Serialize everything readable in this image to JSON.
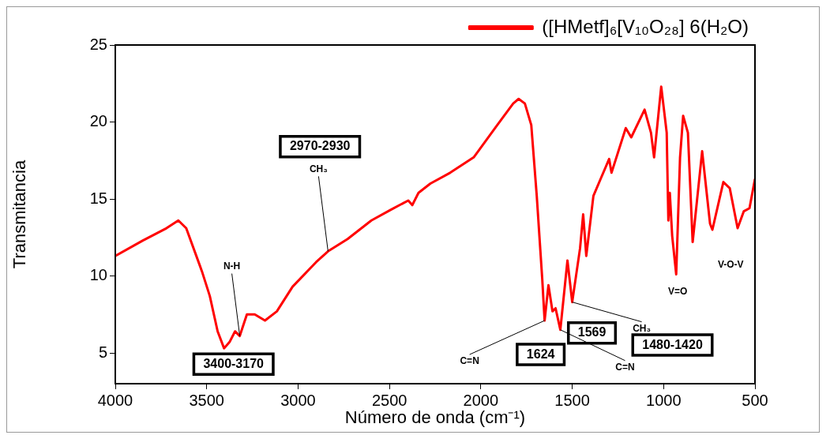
{
  "chart_data": {
    "type": "line",
    "xlabel": "Número de onda (cm⁻¹)",
    "ylabel": "Transmitancia",
    "xlim": [
      4000,
      500
    ],
    "xticks": [
      4000,
      3500,
      3000,
      2500,
      2000,
      1500,
      1000,
      500
    ],
    "ylim": [
      3,
      25
    ],
    "yticks": [
      5,
      10,
      15,
      20,
      25
    ],
    "grid": false,
    "legend": "top right",
    "marker": "none",
    "line_style": "solid",
    "series": [
      {
        "name": "([HMetf]₆[V₁₀O₂₈] 6(H₂O)",
        "color": "#ff0000",
        "x": [
          4000,
          3849,
          3720,
          3655,
          3612,
          3526,
          3483,
          3440,
          3405,
          3375,
          3345,
          3319,
          3280,
          3237,
          3181,
          3116,
          3030,
          2901,
          2836,
          2729,
          2599,
          2492,
          2397,
          2375,
          2341,
          2276,
          2168,
          2039,
          1910,
          1823,
          1793,
          1759,
          1724,
          1694,
          1664,
          1651,
          1630,
          1608,
          1591,
          1565,
          1526,
          1500,
          1457,
          1440,
          1423,
          1384,
          1298,
          1285,
          1207,
          1177,
          1104,
          1069,
          1052,
          1013,
          983,
          974,
          966,
          953,
          931,
          910,
          893,
          867,
          841,
          789,
          746,
          733,
          673,
          638,
          595,
          561,
          530,
          500
        ],
        "values": [
          11.3,
          12.3,
          13.1,
          13.6,
          13.1,
          10.3,
          8.7,
          6.4,
          5.3,
          5.7,
          6.4,
          6.1,
          7.5,
          7.5,
          7.1,
          7.7,
          9.3,
          10.9,
          11.6,
          12.4,
          13.6,
          14.3,
          14.9,
          14.6,
          15.4,
          16.0,
          16.7,
          17.7,
          19.8,
          21.2,
          21.5,
          21.2,
          19.8,
          15.2,
          9.8,
          7.1,
          9.4,
          7.7,
          7.9,
          6.5,
          11.0,
          8.3,
          11.8,
          14.0,
          11.3,
          15.2,
          17.6,
          16.7,
          19.6,
          19.0,
          20.8,
          19.3,
          17.7,
          22.3,
          19.3,
          13.6,
          15.4,
          12.6,
          10.1,
          17.7,
          20.4,
          19.3,
          12.2,
          18.1,
          13.4,
          13.0,
          16.1,
          15.7,
          13.1,
          14.2,
          14.4,
          16.3
        ]
      }
    ],
    "annotations": [
      {
        "text": "3400-3170",
        "x": 3405,
        "y": 5.3
      },
      {
        "text": "N-H",
        "x": 3319,
        "y": 6.1
      },
      "2970-2930",
      {
        "text": "CH₃",
        "x": 2836,
        "y": 11.6
      },
      {
        "text": "C=N",
        "x": 1651,
        "y": 7.1
      },
      "1624",
      {
        "text": "1569",
        "x": 1565,
        "y": 6.5
      },
      {
        "text": "C=N",
        "x": 1565,
        "y": 6.5
      },
      {
        "text": "CH₃",
        "x": 1500,
        "y": 8.3
      },
      "1480-1420",
      {
        "text": "V=O",
        "x": 931,
        "y": 10.1
      },
      "V-O-V"
    ]
  }
}
